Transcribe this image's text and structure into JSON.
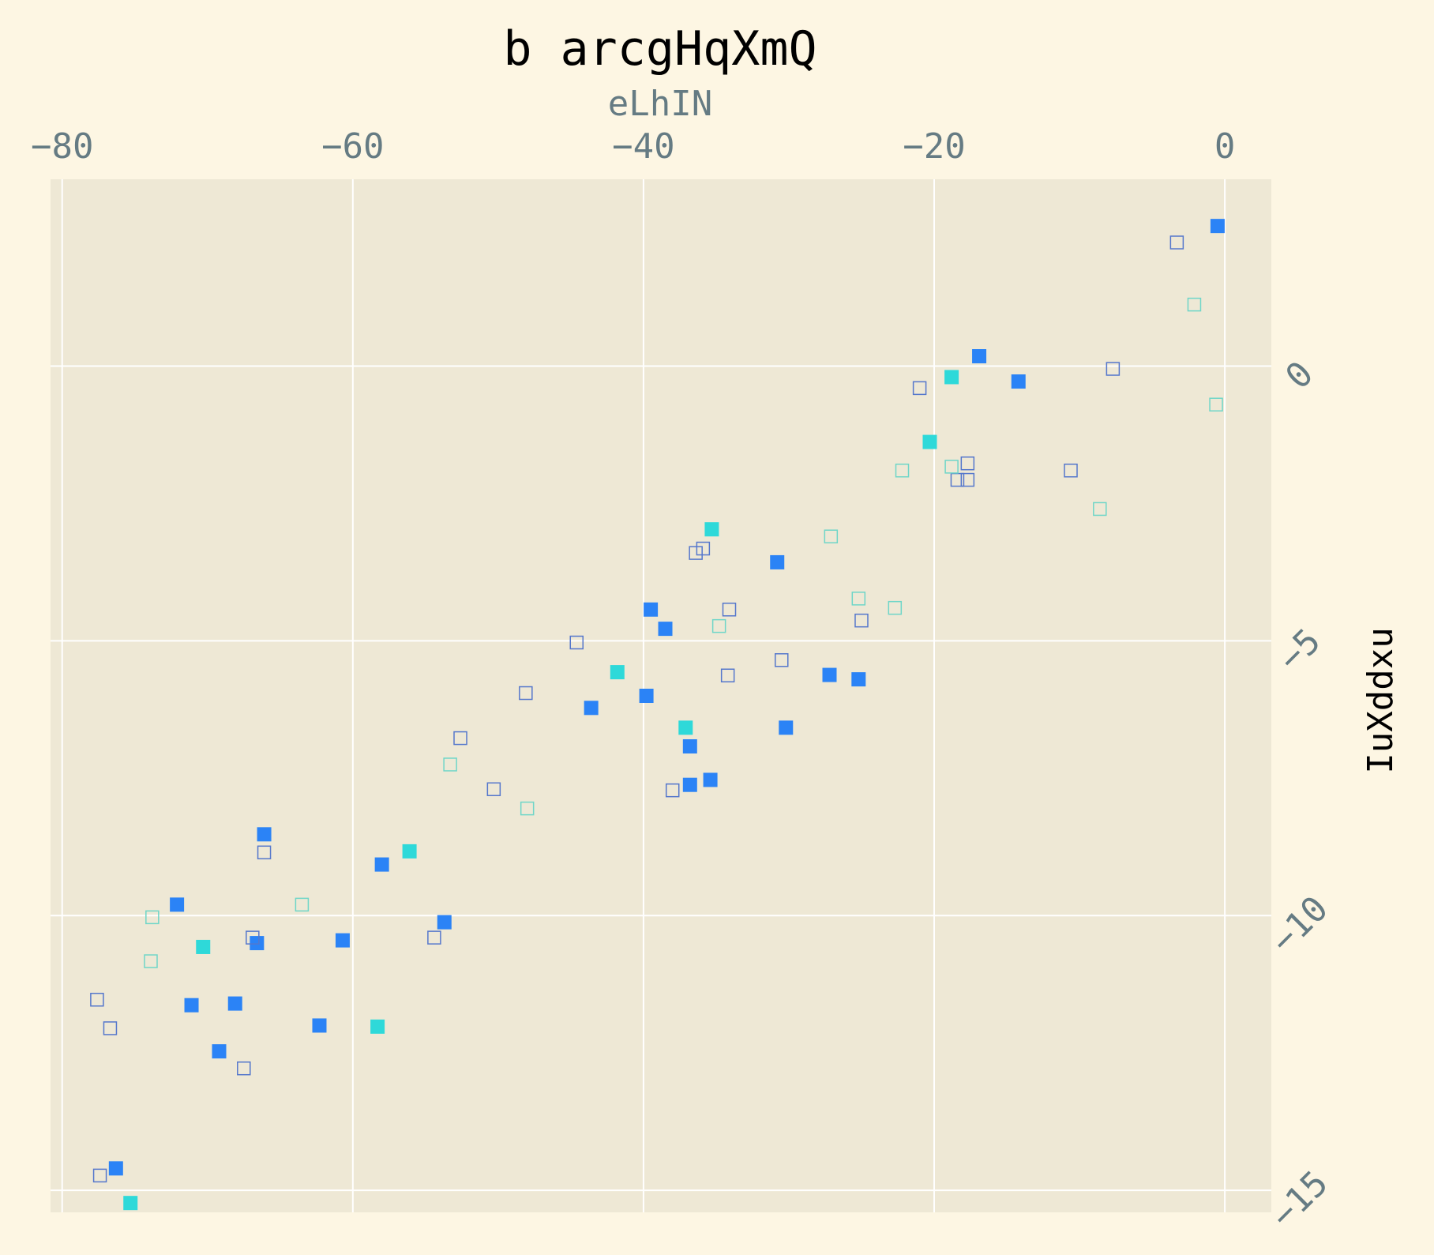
{
  "chart_data": {
    "type": "scatter",
    "title": "b arcgHqXmQ",
    "xlabel": "eLhIN",
    "ylabel": "IuXddxu",
    "x_axis_position": "top",
    "y_axis_position": "right",
    "xlim": [
      -80.8,
      3.2
    ],
    "ylim": [
      -15.4,
      3.4
    ],
    "x_ticks": [
      -80,
      -60,
      -40,
      -20,
      0
    ],
    "x_tick_labels": [
      "−80",
      "−60",
      "−40",
      "−20",
      "0"
    ],
    "y_ticks": [
      0,
      -5,
      -10,
      -15
    ],
    "y_tick_labels": [
      "0",
      "−5",
      "−10",
      "−15"
    ],
    "grid": true,
    "colors": {
      "background": "#fdf6e3",
      "plot_background": "#eee8d5",
      "grid": "#ffffff",
      "tick_text": "#657b83"
    },
    "series": [
      {
        "style": "filled",
        "color": "#2b83f6",
        "points": [
          [
            -0.5,
            2.55
          ],
          [
            -16.9,
            0.18
          ],
          [
            -14.2,
            -0.28
          ],
          [
            -30.8,
            -3.57
          ],
          [
            -39.5,
            -4.43
          ],
          [
            -38.5,
            -4.78
          ],
          [
            -27.2,
            -5.62
          ],
          [
            -25.2,
            -5.7
          ],
          [
            -39.8,
            -6.0
          ],
          [
            -43.6,
            -6.22
          ],
          [
            -30.2,
            -6.58
          ],
          [
            -36.8,
            -6.92
          ],
          [
            -36.8,
            -7.62
          ],
          [
            -35.4,
            -7.53
          ],
          [
            -66.1,
            -8.52
          ],
          [
            -58.0,
            -9.07
          ],
          [
            -72.1,
            -9.8
          ],
          [
            -53.7,
            -10.12
          ],
          [
            -66.6,
            -10.5
          ],
          [
            -60.7,
            -10.45
          ],
          [
            -71.1,
            -11.63
          ],
          [
            -68.1,
            -11.6
          ],
          [
            -62.3,
            -12.0
          ],
          [
            -69.2,
            -12.47
          ],
          [
            -76.3,
            -14.6
          ]
        ]
      },
      {
        "style": "filled",
        "color": "#2ed9d9",
        "points": [
          [
            -18.8,
            -0.2
          ],
          [
            -20.3,
            -1.38
          ],
          [
            -35.3,
            -2.97
          ],
          [
            -41.8,
            -5.57
          ],
          [
            -37.1,
            -6.58
          ],
          [
            -56.1,
            -8.83
          ],
          [
            -70.3,
            -10.57
          ],
          [
            -58.3,
            -12.02
          ],
          [
            -75.3,
            -15.23
          ]
        ]
      },
      {
        "style": "open",
        "color": "#5577cc",
        "points": [
          [
            -3.3,
            2.25
          ],
          [
            -7.7,
            -0.05
          ],
          [
            -21.0,
            -0.4
          ],
          [
            -10.6,
            -1.9
          ],
          [
            -17.7,
            -1.77
          ],
          [
            -18.4,
            -2.07
          ],
          [
            -17.7,
            -2.07
          ],
          [
            -35.9,
            -3.32
          ],
          [
            -36.4,
            -3.4
          ],
          [
            -34.1,
            -4.43
          ],
          [
            -25.0,
            -4.63
          ],
          [
            -44.6,
            -5.03
          ],
          [
            -30.5,
            -5.35
          ],
          [
            -34.2,
            -5.63
          ],
          [
            -48.1,
            -5.95
          ],
          [
            -52.6,
            -6.77
          ],
          [
            -50.3,
            -7.7
          ],
          [
            -38.0,
            -7.72
          ],
          [
            -66.1,
            -8.85
          ],
          [
            -54.4,
            -10.4
          ],
          [
            -66.9,
            -10.4
          ],
          [
            -77.6,
            -11.53
          ],
          [
            -76.7,
            -12.05
          ],
          [
            -67.5,
            -12.78
          ],
          [
            -77.4,
            -14.73
          ]
        ]
      },
      {
        "style": "open",
        "color": "#6fd6c8",
        "points": [
          [
            -2.1,
            1.12
          ],
          [
            -0.6,
            -0.7
          ],
          [
            -8.6,
            -2.6
          ],
          [
            -18.8,
            -1.83
          ],
          [
            -22.2,
            -1.9
          ],
          [
            -27.1,
            -3.1
          ],
          [
            -25.2,
            -4.23
          ],
          [
            -22.7,
            -4.4
          ],
          [
            -34.8,
            -4.73
          ],
          [
            -53.3,
            -7.25
          ],
          [
            -48.0,
            -8.05
          ],
          [
            -63.5,
            -9.8
          ],
          [
            -73.8,
            -10.03
          ],
          [
            -73.9,
            -10.83
          ]
        ]
      }
    ]
  }
}
